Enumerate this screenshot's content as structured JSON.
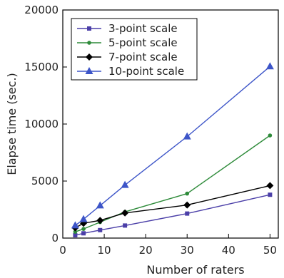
{
  "chart_data": {
    "type": "line",
    "xlabel": "Number of raters",
    "ylabel": "Elapse time (sec.)",
    "xlim": [
      0,
      52
    ],
    "ylim": [
      0,
      20000
    ],
    "xticks": [
      0,
      10,
      20,
      30,
      40,
      50
    ],
    "yticks": [
      0,
      5000,
      10000,
      15000,
      20000
    ],
    "legend_position": "top-left",
    "grid": false,
    "x": [
      3,
      5,
      9,
      15,
      30,
      50
    ],
    "series": [
      {
        "name": "3-point scale",
        "color": "#4b3fa8",
        "marker": "square",
        "values": [
          250,
          420,
          700,
          1100,
          2150,
          3800
        ]
      },
      {
        "name": "5-point scale",
        "color": "#2e8b3a",
        "marker": "circle",
        "values": [
          550,
          800,
          1400,
          2300,
          3900,
          9000
        ]
      },
      {
        "name": "7-point scale",
        "color": "#000000",
        "marker": "diamond",
        "values": [
          900,
          1300,
          1550,
          2200,
          2900,
          4600
        ]
      },
      {
        "name": "10-point scale",
        "color": "#3d55c8",
        "marker": "triangle",
        "values": [
          1100,
          1650,
          2850,
          4650,
          8900,
          15050
        ]
      }
    ]
  }
}
